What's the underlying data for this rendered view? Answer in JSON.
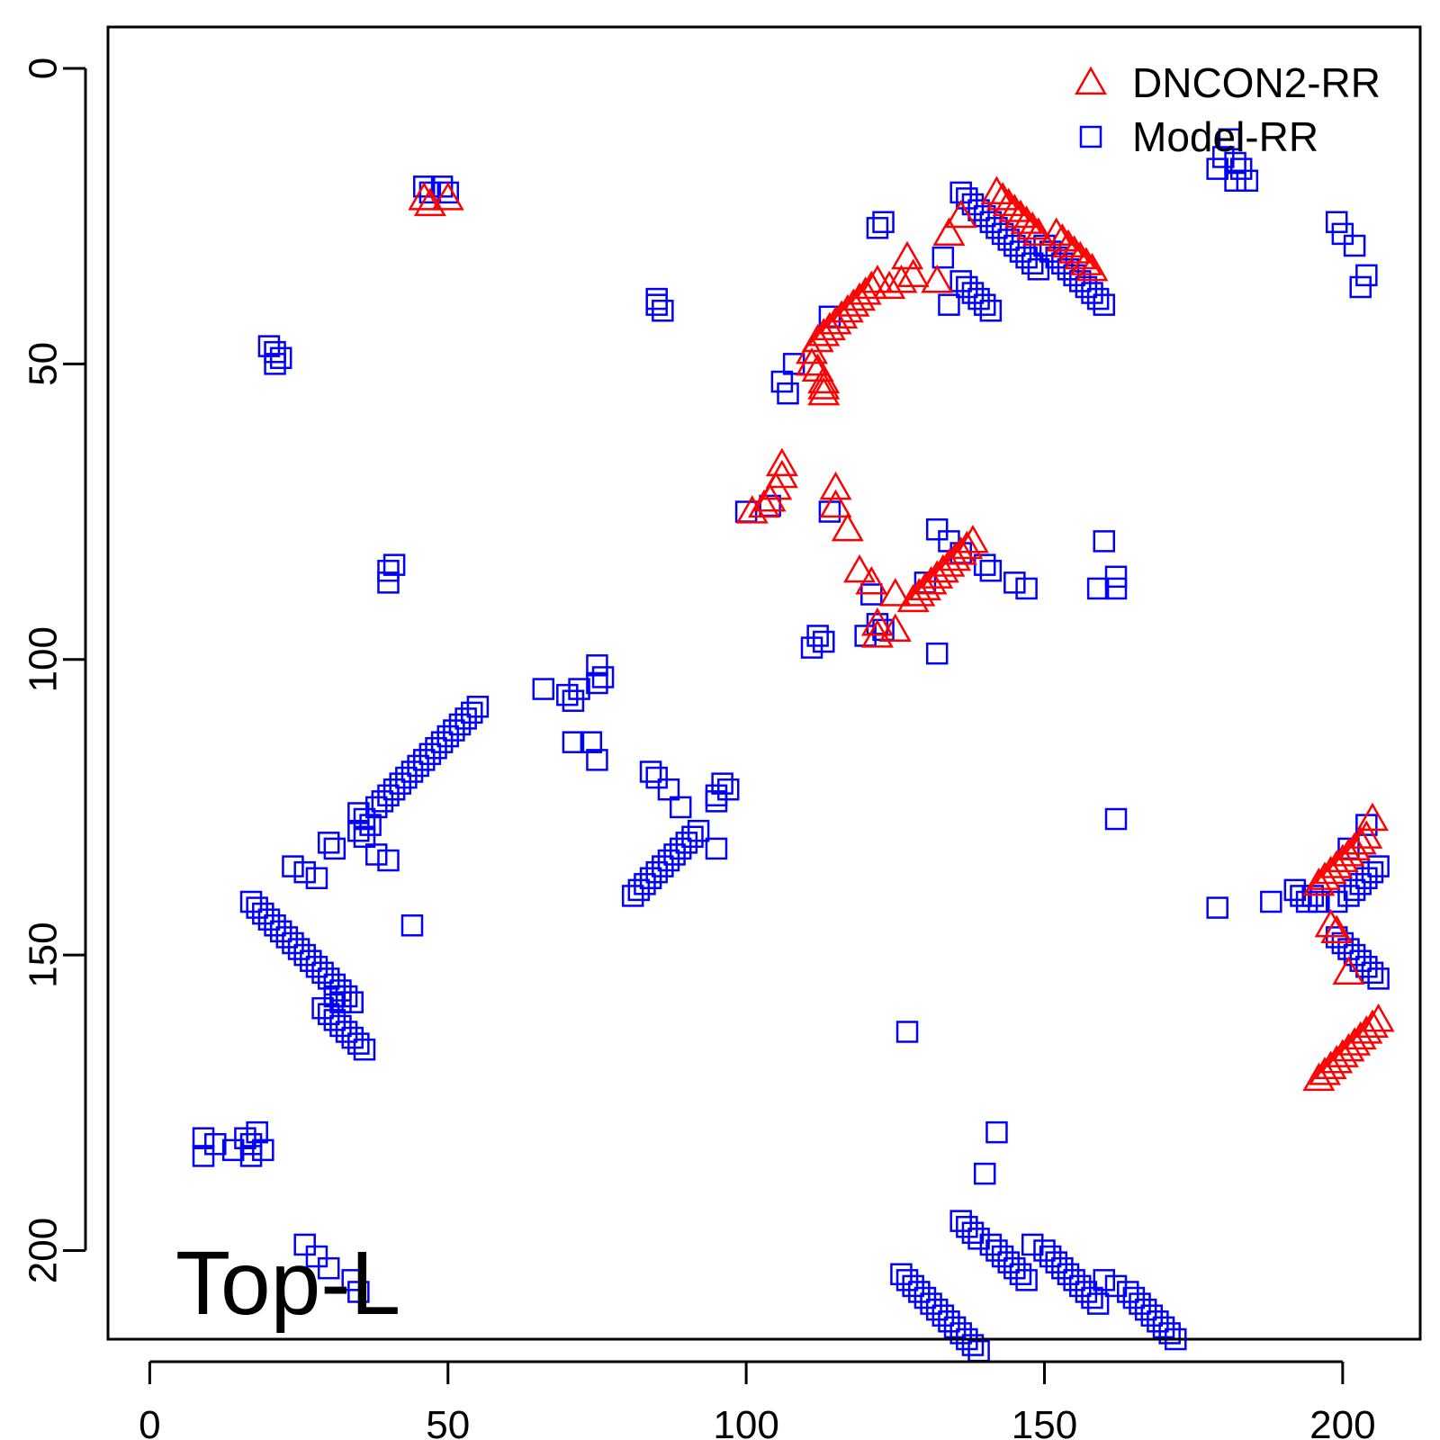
{
  "chart_data": {
    "type": "scatter",
    "title": "",
    "xlabel": "",
    "ylabel": "",
    "xlim": [
      -7,
      213
    ],
    "ylim": [
      -7,
      215
    ],
    "y_reversed": true,
    "x_ticks": [
      0,
      50,
      100,
      150,
      200
    ],
    "y_ticks": [
      0,
      50,
      100,
      150,
      200
    ],
    "grid": false,
    "legend_position": "top-right",
    "annotation": "Top-L",
    "series": [
      {
        "name": "DNCON2-RR",
        "marker": "triangle-open",
        "color": "#ff0000",
        "x": [
          46,
          47,
          50,
          101,
          103,
          104,
          105,
          106,
          106,
          115,
          115,
          117,
          119,
          121,
          122,
          122,
          125,
          125,
          112,
          113,
          114,
          115,
          116,
          117,
          118,
          119,
          120,
          121,
          122,
          111,
          111,
          112,
          113,
          113,
          113,
          124,
          126,
          127,
          128,
          132,
          134,
          136,
          142,
          143,
          144,
          145,
          146,
          147,
          148,
          149,
          152,
          153,
          154,
          155,
          156,
          157,
          158,
          128,
          129,
          130,
          131,
          132,
          133,
          134,
          135,
          136,
          137,
          138,
          196,
          197,
          198,
          199,
          200,
          201,
          202,
          203,
          204,
          205,
          198,
          199,
          201,
          196,
          197,
          198,
          199,
          200,
          201,
          202,
          203,
          204,
          205,
          206
        ],
        "y": [
          22,
          23,
          22,
          75,
          74,
          73,
          71,
          69,
          67,
          71,
          74,
          78,
          85,
          87,
          94,
          96,
          89,
          95,
          46,
          45,
          44,
          43,
          42,
          41,
          40,
          39,
          38,
          37,
          36,
          48,
          50,
          51,
          53,
          54,
          55,
          37,
          36,
          32,
          35,
          36,
          28,
          25,
          21,
          22,
          23,
          24,
          25,
          26,
          27,
          28,
          28,
          29,
          30,
          31,
          32,
          33,
          34,
          90,
          89,
          88,
          87,
          86,
          85,
          84,
          83,
          82,
          81,
          80,
          138,
          137,
          136,
          135,
          134,
          133,
          132,
          131,
          130,
          127,
          145,
          146,
          153,
          171,
          170,
          169,
          168,
          167,
          166,
          165,
          164,
          163,
          162,
          161
        ]
      },
      {
        "name": "Model-RR",
        "marker": "square-open",
        "color": "#0000ff",
        "x": [
          46,
          47,
          49,
          50,
          20,
          21,
          22,
          21,
          85,
          86,
          85,
          40,
          41,
          40,
          9,
          11,
          9,
          14,
          16,
          17,
          18,
          19,
          17,
          180,
          181,
          182,
          183,
          179,
          182,
          184,
          199,
          200,
          202,
          203,
          204,
          107,
          106,
          108,
          100,
          104,
          114,
          132,
          134,
          136,
          140,
          141,
          145,
          147,
          159,
          162,
          162,
          160,
          130,
          121,
          122,
          123,
          120,
          132,
          112,
          113,
          111,
          114,
          136,
          137,
          138,
          139,
          140,
          141,
          133,
          134,
          122,
          123,
          136,
          137,
          138,
          139,
          140,
          141,
          142,
          143,
          144,
          145,
          146,
          147,
          148,
          149,
          150,
          151,
          152,
          153,
          154,
          155,
          156,
          157,
          158,
          159,
          160,
          66,
          70,
          71,
          72,
          75,
          76,
          75,
          71,
          74,
          75,
          38,
          39,
          40,
          41,
          42,
          43,
          44,
          45,
          46,
          47,
          48,
          49,
          50,
          51,
          52,
          53,
          54,
          55,
          35,
          36,
          37,
          35,
          36,
          30,
          31,
          38,
          40,
          44,
          24,
          26,
          28,
          17,
          18,
          19,
          20,
          21,
          22,
          23,
          24,
          25,
          26,
          27,
          28,
          29,
          30,
          31,
          32,
          33,
          34,
          29,
          30,
          31,
          32,
          33,
          34,
          35,
          36,
          31,
          32,
          81,
          82,
          83,
          84,
          85,
          86,
          87,
          88,
          89,
          90,
          91,
          92,
          84,
          85,
          87,
          89,
          95,
          96,
          97,
          95,
          95,
          162,
          179,
          188,
          195,
          196,
          192,
          193,
          194,
          199,
          201,
          202,
          203,
          204,
          205,
          206,
          199,
          200,
          201,
          202,
          203,
          204,
          205,
          206,
          204,
          201,
          127,
          142,
          140,
          136,
          137,
          138,
          139,
          141,
          142,
          143,
          144,
          145,
          146,
          147,
          126,
          127,
          128,
          129,
          130,
          131,
          132,
          133,
          134,
          135,
          136,
          137,
          138,
          139,
          160,
          162,
          164,
          165,
          166,
          167,
          168,
          169,
          170,
          171,
          172,
          148,
          150,
          151,
          152,
          153,
          154,
          155,
          156,
          157,
          158,
          159,
          26,
          28,
          30,
          34,
          35
        ],
        "y": [
          20,
          21,
          20,
          21,
          47,
          48,
          49,
          50,
          40,
          41,
          39,
          85,
          84,
          87,
          181,
          182,
          184,
          183,
          181,
          182,
          180,
          183,
          184,
          15,
          12,
          16,
          17,
          17,
          19,
          19,
          26,
          28,
          30,
          37,
          35,
          55,
          53,
          50,
          75,
          74,
          75,
          78,
          80,
          82,
          84,
          85,
          87,
          88,
          88,
          86,
          88,
          80,
          87,
          89,
          94,
          95,
          96,
          99,
          96,
          97,
          98,
          42,
          36,
          37,
          38,
          39,
          40,
          41,
          32,
          40,
          27,
          26,
          21,
          22,
          23,
          24,
          25,
          26,
          27,
          28,
          29,
          30,
          31,
          32,
          33,
          34,
          30,
          31,
          32,
          33,
          34,
          35,
          36,
          37,
          38,
          39,
          40,
          105,
          106,
          107,
          105,
          104,
          103,
          101,
          114,
          114,
          117,
          125,
          124,
          123,
          122,
          121,
          120,
          119,
          118,
          117,
          116,
          115,
          114,
          113,
          112,
          111,
          110,
          109,
          108,
          126,
          127,
          128,
          129,
          130,
          131,
          132,
          133,
          134,
          145,
          135,
          136,
          137,
          141,
          142,
          143,
          144,
          145,
          146,
          147,
          148,
          149,
          150,
          151,
          152,
          153,
          154,
          155,
          156,
          157,
          158,
          159,
          160,
          161,
          162,
          163,
          164,
          165,
          166,
          157,
          158,
          140,
          139,
          138,
          137,
          136,
          135,
          134,
          133,
          132,
          131,
          130,
          129,
          119,
          120,
          122,
          125,
          132,
          121,
          122,
          123,
          124,
          127,
          142,
          141,
          140,
          141,
          139,
          140,
          141,
          141,
          140,
          139,
          138,
          137,
          136,
          135,
          147,
          148,
          149,
          150,
          151,
          152,
          153,
          154,
          128,
          132,
          163,
          180,
          187,
          195,
          196,
          197,
          198,
          199,
          200,
          201,
          202,
          203,
          204,
          205,
          204,
          205,
          206,
          207,
          208,
          209,
          210,
          211,
          212,
          213,
          214,
          215,
          216,
          217,
          205,
          206,
          207,
          208,
          209,
          210,
          211,
          212,
          213,
          214,
          215,
          199,
          200,
          201,
          202,
          203,
          204,
          205,
          206,
          207,
          208,
          209,
          199,
          201,
          203,
          205,
          207
        ]
      }
    ]
  }
}
